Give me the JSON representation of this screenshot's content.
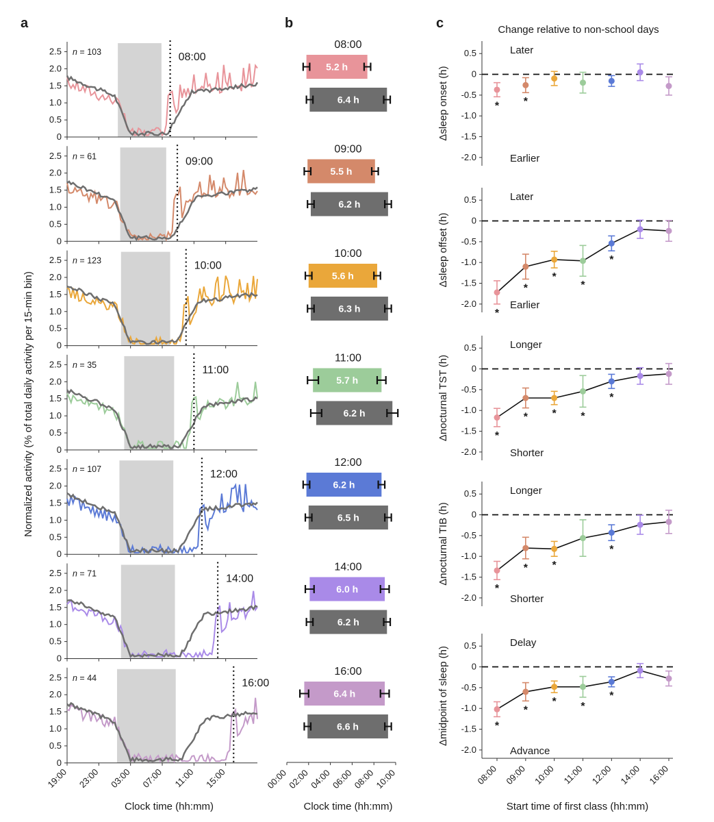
{
  "panel_letters": {
    "a": "a",
    "b": "b",
    "c": "c"
  },
  "panel_c_title": "Change relative to non-school days",
  "chart_data": [
    {
      "type": "line",
      "panel": "a",
      "ylabel": "Normalized activity (% of total daily activity per 15-min bin)",
      "xlabel": "Clock time (hh:mm)",
      "xticks": [
        "19:00",
        "23:00",
        "03:00",
        "07:00",
        "11:00",
        "15:00"
      ],
      "xtick_hours": [
        19,
        23,
        27,
        31,
        35,
        39
      ],
      "xlim_hours": [
        19,
        43
      ],
      "ylim": [
        0,
        2.75
      ],
      "yticks": [
        "0",
        "0.5",
        "1.0",
        "1.5",
        "2.0",
        "2.5"
      ],
      "subplots": [
        {
          "class_time": "08:00",
          "n_prefix": "n",
          "n_value": "= 103",
          "color": "#e8949a",
          "sleep_shade": [
            25.4,
            30.9
          ],
          "dotted_line": 32.0
        },
        {
          "class_time": "09:00",
          "n_prefix": "n",
          "n_value": "= 61",
          "color": "#d4896a",
          "sleep_shade": [
            25.7,
            31.5
          ],
          "dotted_line": 32.9
        },
        {
          "class_time": "10:00",
          "n_prefix": "n",
          "n_value": "= 123",
          "color": "#eaa73a",
          "sleep_shade": [
            25.8,
            32.0
          ],
          "dotted_line": 34.0
        },
        {
          "class_time": "11:00",
          "n_prefix": "n",
          "n_value": "= 35",
          "color": "#9ccc9a",
          "sleep_shade": [
            26.2,
            32.5
          ],
          "dotted_line": 35.0
        },
        {
          "class_time": "12:00",
          "n_prefix": "n",
          "n_value": "= 107",
          "color": "#5b7ad6",
          "sleep_shade": [
            25.6,
            32.4
          ],
          "dotted_line": 36.0
        },
        {
          "class_time": "14:00",
          "n_prefix": "n",
          "n_value": "= 71",
          "color": "#a98ae8",
          "sleep_shade": [
            25.8,
            32.6
          ],
          "dotted_line": 38.0
        },
        {
          "class_time": "16:00",
          "n_prefix": "n",
          "n_value": "= 44",
          "color": "#c49ac9",
          "sleep_shade": [
            25.3,
            32.7
          ],
          "dotted_line": 40.0
        }
      ]
    },
    {
      "type": "bar",
      "panel": "b",
      "xlabel": "Clock time (hh:mm)",
      "xticks": [
        "00:00",
        "02:00",
        "04:00",
        "06:00",
        "08:00",
        "10:00"
      ],
      "xlim_hours": [
        0,
        10
      ],
      "groups": [
        {
          "label": "08:00",
          "school": {
            "label": "5.2 h",
            "start": 1.8,
            "end": 7.4,
            "err_start": 0.3,
            "err_end": 0.3,
            "color": "#e8949a"
          },
          "non_school": {
            "label": "6.4 h",
            "start": 2.1,
            "end": 9.2,
            "err_start": 0.3,
            "err_end": 0.3
          }
        },
        {
          "label": "09:00",
          "school": {
            "label": "5.5 h",
            "start": 1.9,
            "end": 8.1,
            "err_start": 0.3,
            "err_end": 0.3,
            "color": "#d4896a"
          },
          "non_school": {
            "label": "6.2 h",
            "start": 2.2,
            "end": 9.3,
            "err_start": 0.3,
            "err_end": 0.3
          }
        },
        {
          "label": "10:00",
          "school": {
            "label": "5.6 h",
            "start": 2.0,
            "end": 8.3,
            "err_start": 0.3,
            "err_end": 0.3,
            "color": "#eaa73a"
          },
          "non_school": {
            "label": "6.3 h",
            "start": 2.2,
            "end": 9.3,
            "err_start": 0.3,
            "err_end": 0.3
          }
        },
        {
          "label": "11:00",
          "school": {
            "label": "5.7 h",
            "start": 2.4,
            "end": 8.7,
            "err_start": 0.5,
            "err_end": 0.4,
            "color": "#9ccc9a"
          },
          "non_school": {
            "label": "6.2 h",
            "start": 2.7,
            "end": 9.7,
            "err_start": 0.5,
            "err_end": 0.5
          }
        },
        {
          "label": "12:00",
          "school": {
            "label": "6.2 h",
            "start": 1.8,
            "end": 8.7,
            "err_start": 0.3,
            "err_end": 0.3,
            "color": "#5b7ad6"
          },
          "non_school": {
            "label": "6.5 h",
            "start": 2.0,
            "end": 9.3,
            "err_start": 0.3,
            "err_end": 0.3
          }
        },
        {
          "label": "14:00",
          "school": {
            "label": "6.0 h",
            "start": 2.1,
            "end": 9.0,
            "err_start": 0.4,
            "err_end": 0.4,
            "color": "#a98ae8"
          },
          "non_school": {
            "label": "6.2 h",
            "start": 2.1,
            "end": 9.2,
            "err_start": 0.3,
            "err_end": 0.3
          }
        },
        {
          "label": "16:00",
          "school": {
            "label": "6.4 h",
            "start": 1.6,
            "end": 9.0,
            "err_start": 0.4,
            "err_end": 0.4,
            "color": "#c49ac9"
          },
          "non_school": {
            "label": "6.6 h",
            "start": 1.9,
            "end": 9.3,
            "err_start": 0.3,
            "err_end": 0.3
          }
        }
      ],
      "non_school_color": "#6e6e6e"
    },
    {
      "type": "line",
      "panel": "c",
      "title": "Change relative to non-school days",
      "xlabel": "Start time of first class (hh:mm)",
      "categories": [
        "08:00",
        "09:00",
        "10:00",
        "11:00",
        "12:00",
        "14:00",
        "16:00"
      ],
      "point_colors": [
        "#e8949a",
        "#d4896a",
        "#eaa73a",
        "#9ccc9a",
        "#5b7ad6",
        "#a98ae8",
        "#c49ac9"
      ],
      "ylim": [
        -2.2,
        0.8
      ],
      "yticks": [
        "0.5",
        "0",
        "-0.5",
        "-1.0",
        "-1.5",
        "-2.0"
      ],
      "subplots": [
        {
          "ylabel": "Δsleep onset (h)",
          "top_label": "Later",
          "bottom_label": "Earlier",
          "connected": false,
          "values": [
            -0.37,
            -0.26,
            -0.1,
            -0.2,
            -0.16,
            0.05,
            -0.28
          ],
          "err": [
            0.17,
            0.18,
            0.17,
            0.25,
            0.13,
            0.2,
            0.22
          ],
          "stars": [
            true,
            true,
            false,
            false,
            false,
            false,
            false
          ]
        },
        {
          "ylabel": "Δsleep offset (h)",
          "top_label": "Later",
          "bottom_label": "Earlier",
          "connected": true,
          "values": [
            -1.72,
            -1.1,
            -0.93,
            -0.96,
            -0.54,
            -0.2,
            -0.24
          ],
          "err": [
            0.28,
            0.3,
            0.2,
            0.37,
            0.18,
            0.22,
            0.25
          ],
          "stars": [
            true,
            true,
            true,
            true,
            true,
            false,
            false
          ]
        },
        {
          "ylabel": "Δnocturnal TST (h)",
          "top_label": "Longer",
          "bottom_label": "Shorter",
          "connected": true,
          "values": [
            -1.17,
            -0.7,
            -0.7,
            -0.54,
            -0.3,
            -0.17,
            -0.12
          ],
          "err": [
            0.22,
            0.24,
            0.16,
            0.38,
            0.17,
            0.2,
            0.25
          ],
          "stars": [
            true,
            true,
            true,
            true,
            true,
            false,
            false
          ]
        },
        {
          "ylabel": "Δnocturnal TIB (h)",
          "top_label": "Longer",
          "bottom_label": "Shorter",
          "connected": true,
          "values": [
            -1.34,
            -0.8,
            -0.82,
            -0.56,
            -0.43,
            -0.24,
            -0.17
          ],
          "err": [
            0.22,
            0.26,
            0.18,
            0.44,
            0.19,
            0.23,
            0.28
          ],
          "stars": [
            true,
            true,
            true,
            false,
            true,
            false,
            false
          ]
        },
        {
          "ylabel": "Δmidpoint of sleep (h)",
          "top_label": "Delay",
          "bottom_label": "Advance",
          "connected": true,
          "values": [
            -1.02,
            -0.6,
            -0.48,
            -0.48,
            -0.36,
            -0.09,
            -0.28
          ],
          "err": [
            0.18,
            0.22,
            0.14,
            0.25,
            0.12,
            0.17,
            0.18
          ],
          "stars": [
            true,
            true,
            true,
            true,
            true,
            false,
            false
          ]
        }
      ]
    }
  ]
}
